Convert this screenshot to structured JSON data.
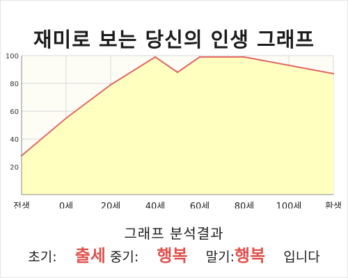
{
  "title": "재미로 보는 당신의 인생 그래프",
  "analysis": {
    "heading": "그래프 분석결과",
    "early_label": "초기:",
    "early_value": "출세",
    "mid_label": "중기:",
    "mid_value": "행복",
    "late_label": "말기:",
    "late_value": "행복",
    "suffix": "입니다"
  },
  "colors": {
    "line": "#e06666",
    "area": "#ffffc0",
    "highlight": "#e0504c",
    "grid": "#d8d8d8"
  },
  "chart_data": {
    "type": "area",
    "title": "",
    "xlabel": "",
    "ylabel": "",
    "x_tick_labels": [
      "전생",
      "0세",
      "20세",
      "40세",
      "60세",
      "80세",
      "100세",
      "환생"
    ],
    "y_ticks": [
      20,
      40,
      60,
      80,
      100
    ],
    "ylim": [
      0,
      100
    ],
    "grid": true,
    "series": [
      {
        "x": [
          "전생",
          "0세",
          "20세",
          "40세",
          "50세",
          "60세",
          "80세",
          "100세",
          "환생"
        ],
        "values": [
          28,
          55,
          79,
          99,
          88,
          99,
          99,
          93,
          87
        ]
      }
    ]
  }
}
